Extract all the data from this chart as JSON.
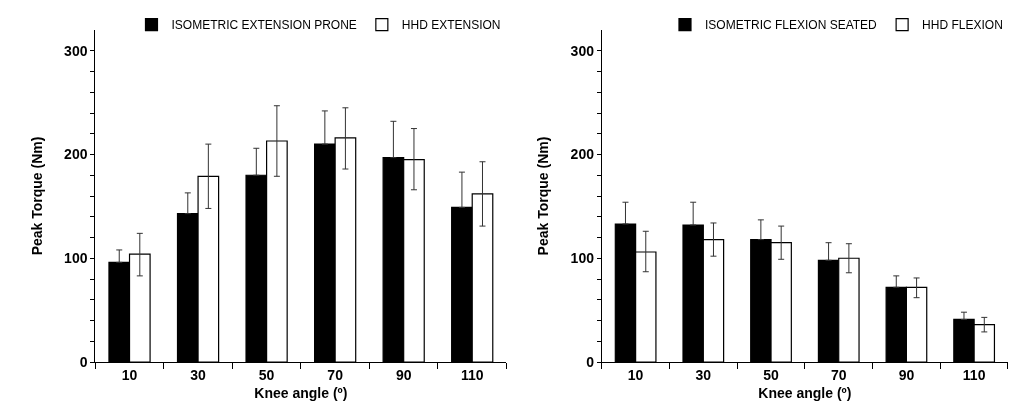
{
  "chart_data": [
    {
      "type": "bar",
      "xlabel": "Knee angle (º)",
      "ylabel": "Peak Torque (Nm)",
      "categories": [
        "10",
        "30",
        "50",
        "70",
        "90",
        "110"
      ],
      "ylim": [
        0,
        320
      ],
      "yticks": [
        0,
        {
          "value": 20,
          "label": null
        },
        {
          "value": 40,
          "label": null
        },
        {
          "value": 60,
          "label": null
        },
        {
          "value": 80,
          "label": null
        },
        100,
        {
          "value": 120,
          "label": null
        },
        {
          "value": 140,
          "label": null
        },
        {
          "value": 160,
          "label": null
        },
        {
          "value": 180,
          "label": null
        },
        200,
        {
          "value": 220,
          "label": null
        },
        {
          "value": 240,
          "label": null
        },
        {
          "value": 260,
          "label": null
        },
        {
          "value": 280,
          "label": null
        },
        300
      ],
      "legend": "top right",
      "series": [
        {
          "name": "ISOMETRIC EXTENSION PRONE",
          "color": "#000000",
          "values": [
            96,
            143,
            180,
            210,
            197,
            149
          ],
          "errors": [
            [
              96,
              108
            ],
            [
              143,
              163
            ],
            [
              180,
              206
            ],
            [
              210,
              242
            ],
            [
              197,
              232
            ],
            [
              149,
              183
            ]
          ]
        },
        {
          "name": "HHD EXTENSION",
          "color": "#ffffff",
          "values": [
            104,
            179,
            213,
            216,
            195,
            162
          ],
          "errors": [
            [
              83,
              124
            ],
            [
              148,
              210
            ],
            [
              179,
              247
            ],
            [
              186,
              245
            ],
            [
              166,
              225
            ],
            [
              131,
              193
            ]
          ]
        }
      ]
    },
    {
      "type": "bar",
      "xlabel": "Knee angle (º)",
      "ylabel": "Peak Torque (Nm)",
      "categories": [
        "10",
        "30",
        "50",
        "70",
        "90",
        "110"
      ],
      "ylim": [
        0,
        320
      ],
      "yticks": [
        0,
        {
          "value": 20,
          "label": null
        },
        {
          "value": 40,
          "label": null
        },
        {
          "value": 60,
          "label": null
        },
        {
          "value": 80,
          "label": null
        },
        100,
        {
          "value": 120,
          "label": null
        },
        {
          "value": 140,
          "label": null
        },
        {
          "value": 160,
          "label": null
        },
        {
          "value": 180,
          "label": null
        },
        200,
        {
          "value": 220,
          "label": null
        },
        {
          "value": 240,
          "label": null
        },
        {
          "value": 260,
          "label": null
        },
        {
          "value": 280,
          "label": null
        },
        300
      ],
      "legend": "top right",
      "series": [
        {
          "name": "ISOMETRIC FLEXION SEATED",
          "color": "#000000",
          "values": [
            133,
            132,
            118,
            98,
            72,
            41
          ],
          "errors": [
            [
              133,
              154
            ],
            [
              132,
              154
            ],
            [
              118,
              137
            ],
            [
              98,
              115
            ],
            [
              72,
              83
            ],
            [
              41,
              48
            ]
          ]
        },
        {
          "name": "HHD FLEXION",
          "color": "#ffffff",
          "values": [
            106,
            118,
            115,
            100,
            72,
            36
          ],
          "errors": [
            [
              87,
              126
            ],
            [
              102,
              134
            ],
            [
              99,
              131
            ],
            [
              86,
              114
            ],
            [
              62,
              81
            ],
            [
              29,
              43
            ]
          ]
        }
      ]
    }
  ]
}
